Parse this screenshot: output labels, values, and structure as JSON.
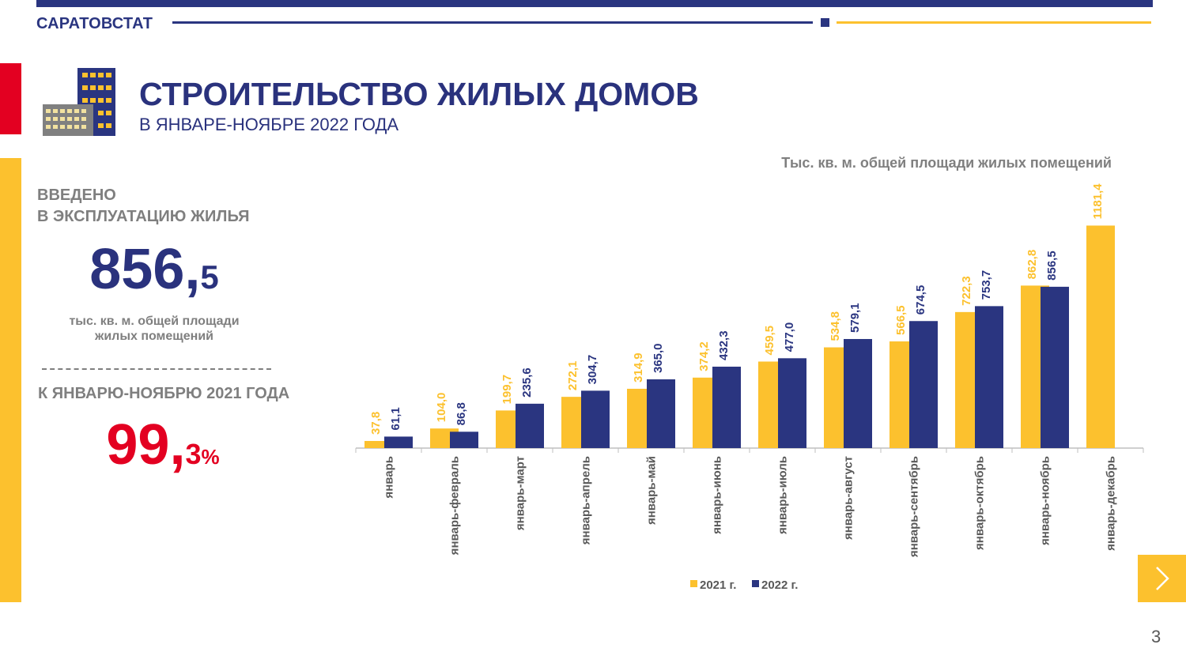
{
  "header": {
    "brand": "САРАТОВСТАТ",
    "title": "СТРОИТЕЛЬСТВО ЖИЛЫХ ДОМОВ",
    "subtitle": "В ЯНВАРЕ-НОЯБРЕ 2022 ГОДА"
  },
  "summary": {
    "heading_line1": "ВВЕДЕНО",
    "heading_line2": "В ЭКСПЛУАТАЦИЮ ЖИЛЬЯ",
    "value_main": "856,",
    "value_sub": "5",
    "unit_line1": "тыс. кв. м. общей площади",
    "unit_line2": "жилых помещений",
    "compare_heading": "К ЯНВАРЮ-НОЯБРЮ 2021 ГОДА",
    "compare_main": "99,",
    "compare_sub": "3",
    "compare_sign": "%"
  },
  "chart_data": {
    "type": "bar",
    "unit_label": "Тыс. кв. м. общей площади жилых помещений",
    "categories": [
      "январь",
      "январь-февраль",
      "январь-март",
      "январь-апрель",
      "январь-май",
      "январь-июнь",
      "январь-июль",
      "январь-август",
      "январь-сентябрь",
      "январь-октябрь",
      "январь-ноябрь",
      "январь-декабрь"
    ],
    "series": [
      {
        "name": "2021 г.",
        "color": "#fcc12e",
        "values": [
          37.8,
          104.0,
          199.7,
          272.1,
          314.9,
          374.2,
          459.5,
          534.8,
          566.5,
          722.3,
          862.8,
          1181.4
        ],
        "labels": [
          "37,8",
          "104,0",
          "199,7",
          "272,1",
          "314,9",
          "374,2",
          "459,5",
          "534,8",
          "566,5",
          "722,3",
          "862,8",
          "1181,4"
        ]
      },
      {
        "name": "2022 г.",
        "color": "#2a3580",
        "values": [
          61.1,
          86.8,
          235.6,
          304.7,
          365.0,
          432.3,
          477.0,
          579.1,
          674.5,
          753.7,
          856.5,
          null
        ],
        "labels": [
          "61,1",
          "86,8",
          "235,6",
          "304,7",
          "365,0",
          "432,3",
          "477,0",
          "579,1",
          "674,5",
          "753,7",
          "856,5",
          null
        ]
      }
    ],
    "ylim": [
      0,
      1200
    ],
    "legend": "bottom-center",
    "grid": false
  },
  "footer": {
    "page_number": "3"
  }
}
